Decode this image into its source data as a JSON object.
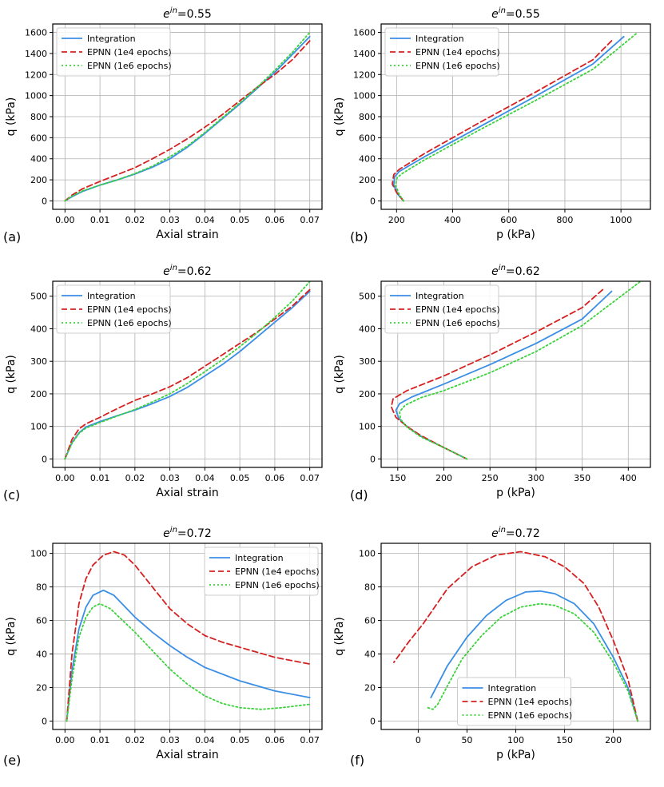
{
  "figure": {
    "colors": {
      "integration": "#3a8ee6",
      "epnn_1e4": "#d62020",
      "epnn_1e6": "#3ad23a"
    }
  },
  "chart_data": [
    {
      "id": "a",
      "panel_label": "(a)",
      "type": "line",
      "title_base": "e",
      "title_sup": "in",
      "title_value": "=0.55",
      "xlabel": "Axial strain",
      "ylabel": "q (kPa)",
      "xlim": [
        -0.0035,
        0.0735
      ],
      "ylim": [
        -80,
        1680
      ],
      "xticks": [
        0,
        0.01,
        0.02,
        0.03,
        0.04,
        0.05,
        0.06,
        0.07
      ],
      "xtick_labels": [
        "0.00",
        "0.01",
        "0.02",
        "0.03",
        "0.04",
        "0.05",
        "0.06",
        "0.07"
      ],
      "yticks": [
        0,
        200,
        400,
        600,
        800,
        1000,
        1200,
        1400,
        1600
      ],
      "ytick_labels": [
        "0",
        "200",
        "400",
        "600",
        "800",
        "1000",
        "1200",
        "1400",
        "1600"
      ],
      "legend": "top-left",
      "series": [
        {
          "name": "Integration",
          "style": "solid",
          "color_key": "integration",
          "x": [
            0,
            0.002,
            0.005,
            0.01,
            0.015,
            0.02,
            0.025,
            0.03,
            0.035,
            0.04,
            0.045,
            0.05,
            0.055,
            0.06,
            0.065,
            0.07
          ],
          "y": [
            0,
            40,
            90,
            150,
            200,
            255,
            320,
            400,
            510,
            640,
            780,
            920,
            1070,
            1220,
            1390,
            1560
          ]
        },
        {
          "name": "EPNN (1e4 epochs)",
          "style": "dashed",
          "color_key": "epnn_1e4",
          "x": [
            0,
            0.002,
            0.005,
            0.01,
            0.015,
            0.02,
            0.025,
            0.03,
            0.035,
            0.04,
            0.045,
            0.05,
            0.055,
            0.06,
            0.065,
            0.07
          ],
          "y": [
            0,
            55,
            115,
            185,
            250,
            315,
            400,
            490,
            590,
            700,
            820,
            950,
            1080,
            1200,
            1340,
            1520
          ]
        },
        {
          "name": "EPNN (1e6 epochs)",
          "style": "dotted",
          "color_key": "epnn_1e6",
          "x": [
            0,
            0.002,
            0.005,
            0.01,
            0.015,
            0.02,
            0.025,
            0.03,
            0.035,
            0.04,
            0.045,
            0.05,
            0.055,
            0.06,
            0.065,
            0.07
          ],
          "y": [
            0,
            45,
            95,
            150,
            200,
            260,
            330,
            420,
            520,
            650,
            790,
            930,
            1080,
            1240,
            1410,
            1600
          ]
        }
      ]
    },
    {
      "id": "b",
      "panel_label": "(b)",
      "type": "line",
      "title_base": "e",
      "title_sup": "in",
      "title_value": "=0.55",
      "xlabel": "p (kPa)",
      "ylabel": "q (kPa)",
      "xlim": [
        145,
        1105
      ],
      "ylim": [
        -80,
        1680
      ],
      "xticks": [
        200,
        400,
        600,
        800,
        1000
      ],
      "xtick_labels": [
        "200",
        "400",
        "600",
        "800",
        "1000"
      ],
      "yticks": [
        0,
        200,
        400,
        600,
        800,
        1000,
        1200,
        1400,
        1600
      ],
      "ytick_labels": [
        "0",
        "200",
        "400",
        "600",
        "800",
        "1000",
        "1200",
        "1400",
        "1600"
      ],
      "legend": "top-left",
      "series": [
        {
          "name": "Integration",
          "style": "solid",
          "color_key": "integration",
          "x": [
            225,
            205,
            190,
            193,
            210,
            300,
            500,
            700,
            900,
            1010
          ],
          "y": [
            0,
            60,
            150,
            230,
            280,
            420,
            710,
            1000,
            1300,
            1560
          ]
        },
        {
          "name": "EPNN (1e4 epochs)",
          "style": "dashed",
          "color_key": "epnn_1e4",
          "x": [
            225,
            200,
            185,
            190,
            210,
            300,
            500,
            700,
            900,
            970
          ],
          "y": [
            0,
            80,
            160,
            250,
            300,
            450,
            750,
            1040,
            1340,
            1530
          ]
        },
        {
          "name": "EPNN (1e6 epochs)",
          "style": "dotted",
          "color_key": "epnn_1e6",
          "x": [
            225,
            210,
            196,
            202,
            220,
            300,
            500,
            700,
            900,
            1060
          ],
          "y": [
            0,
            60,
            150,
            220,
            260,
            390,
            680,
            960,
            1250,
            1600
          ]
        }
      ]
    },
    {
      "id": "c",
      "panel_label": "(c)",
      "type": "line",
      "title_base": "e",
      "title_sup": "in",
      "title_value": "=0.62",
      "xlabel": "Axial strain",
      "ylabel": "q (kPa)",
      "xlim": [
        -0.0035,
        0.0735
      ],
      "ylim": [
        -26,
        546
      ],
      "xticks": [
        0,
        0.01,
        0.02,
        0.03,
        0.04,
        0.05,
        0.06,
        0.07
      ],
      "xtick_labels": [
        "0.00",
        "0.01",
        "0.02",
        "0.03",
        "0.04",
        "0.05",
        "0.06",
        "0.07"
      ],
      "yticks": [
        0,
        100,
        200,
        300,
        400,
        500
      ],
      "ytick_labels": [
        "0",
        "100",
        "200",
        "300",
        "400",
        "500"
      ],
      "legend": "top-left",
      "series": [
        {
          "name": "Integration",
          "style": "solid",
          "color_key": "integration",
          "x": [
            0,
            0.002,
            0.004,
            0.006,
            0.01,
            0.015,
            0.02,
            0.025,
            0.03,
            0.035,
            0.04,
            0.045,
            0.05,
            0.055,
            0.06,
            0.065,
            0.07
          ],
          "y": [
            0,
            50,
            80,
            98,
            115,
            133,
            150,
            170,
            192,
            220,
            255,
            290,
            330,
            375,
            420,
            465,
            515
          ]
        },
        {
          "name": "EPNN (1e4 epochs)",
          "style": "dashed",
          "color_key": "epnn_1e4",
          "x": [
            0,
            0.002,
            0.004,
            0.006,
            0.01,
            0.015,
            0.02,
            0.025,
            0.03,
            0.035,
            0.04,
            0.045,
            0.05,
            0.055,
            0.06,
            0.065,
            0.07
          ],
          "y": [
            0,
            60,
            92,
            108,
            128,
            155,
            180,
            200,
            222,
            250,
            285,
            320,
            355,
            390,
            430,
            470,
            520
          ]
        },
        {
          "name": "EPNN (1e6 epochs)",
          "style": "dotted",
          "color_key": "epnn_1e6",
          "x": [
            0,
            0.002,
            0.004,
            0.006,
            0.01,
            0.015,
            0.02,
            0.025,
            0.03,
            0.035,
            0.04,
            0.045,
            0.05,
            0.055,
            0.06,
            0.065,
            0.07
          ],
          "y": [
            0,
            48,
            78,
            95,
            112,
            132,
            152,
            175,
            200,
            232,
            268,
            305,
            345,
            388,
            435,
            485,
            545
          ]
        }
      ]
    },
    {
      "id": "d",
      "panel_label": "(d)",
      "type": "line",
      "title_base": "e",
      "title_sup": "in",
      "title_value": "=0.62",
      "xlabel": "p (kPa)",
      "ylabel": "q (kPa)",
      "xlim": [
        132,
        424
      ],
      "ylim": [
        -26,
        546
      ],
      "xticks": [
        150,
        200,
        250,
        300,
        350,
        400
      ],
      "xtick_labels": [
        "150",
        "200",
        "250",
        "300",
        "350",
        "400"
      ],
      "yticks": [
        0,
        100,
        200,
        300,
        400,
        500
      ],
      "ytick_labels": [
        "0",
        "100",
        "200",
        "300",
        "400",
        "500"
      ],
      "legend": "top-left",
      "series": [
        {
          "name": "Integration",
          "style": "solid",
          "color_key": "integration",
          "x": [
            225,
            200,
            175,
            160,
            151,
            148,
            152,
            165,
            200,
            250,
            300,
            350,
            382
          ],
          "y": [
            0,
            35,
            70,
            100,
            125,
            150,
            170,
            190,
            230,
            290,
            355,
            430,
            515
          ]
        },
        {
          "name": "EPNN (1e4 epochs)",
          "style": "dashed",
          "color_key": "epnn_1e4",
          "x": [
            225,
            200,
            175,
            160,
            148,
            143,
            145,
            160,
            200,
            250,
            300,
            350,
            373
          ],
          "y": [
            0,
            35,
            72,
            100,
            128,
            160,
            185,
            210,
            255,
            320,
            390,
            465,
            522
          ]
        },
        {
          "name": "EPNN (1e6 epochs)",
          "style": "dotted",
          "color_key": "epnn_1e6",
          "x": [
            225,
            200,
            175,
            160,
            153,
            152,
            158,
            175,
            200,
            250,
            300,
            350,
            413
          ],
          "y": [
            0,
            35,
            68,
            98,
            122,
            145,
            165,
            188,
            210,
            265,
            330,
            410,
            545
          ]
        }
      ]
    },
    {
      "id": "e",
      "panel_label": "(e)",
      "type": "line",
      "title_base": "e",
      "title_sup": "in",
      "title_value": "=0.72",
      "xlabel": "Axial strain",
      "ylabel": "q (kPa)",
      "xlim": [
        -0.0035,
        0.0735
      ],
      "ylim": [
        -5,
        106
      ],
      "xticks": [
        0,
        0.01,
        0.02,
        0.03,
        0.04,
        0.05,
        0.06,
        0.07
      ],
      "xtick_labels": [
        "0.00",
        "0.01",
        "0.02",
        "0.03",
        "0.04",
        "0.05",
        "0.06",
        "0.07"
      ],
      "yticks": [
        0,
        20,
        40,
        60,
        80,
        100
      ],
      "ytick_labels": [
        "0",
        "20",
        "40",
        "60",
        "80",
        "100"
      ],
      "legend": "top-right",
      "series": [
        {
          "name": "Integration",
          "style": "solid",
          "color_key": "integration",
          "x": [
            0.0005,
            0.002,
            0.004,
            0.006,
            0.008,
            0.011,
            0.014,
            0.02,
            0.025,
            0.03,
            0.035,
            0.04,
            0.05,
            0.06,
            0.07
          ],
          "y": [
            0,
            30,
            55,
            68,
            75,
            78,
            75,
            62,
            53,
            45,
            38,
            32,
            24,
            18,
            14
          ]
        },
        {
          "name": "EPNN (1e4 epochs)",
          "style": "dashed",
          "color_key": "epnn_1e4",
          "x": [
            0.0005,
            0.002,
            0.004,
            0.006,
            0.008,
            0.011,
            0.014,
            0.017,
            0.02,
            0.025,
            0.03,
            0.035,
            0.04,
            0.045,
            0.05,
            0.06,
            0.07
          ],
          "y": [
            0,
            40,
            70,
            85,
            93,
            99,
            101,
            99,
            93,
            80,
            67,
            58,
            51,
            47,
            44,
            38,
            34
          ]
        },
        {
          "name": "EPNN (1e6 epochs)",
          "style": "dotted",
          "color_key": "epnn_1e6",
          "x": [
            0.0005,
            0.002,
            0.004,
            0.006,
            0.008,
            0.01,
            0.013,
            0.02,
            0.025,
            0.03,
            0.035,
            0.04,
            0.045,
            0.05,
            0.056,
            0.062,
            0.07
          ],
          "y": [
            0,
            25,
            50,
            62,
            68,
            70,
            67,
            53,
            42,
            31,
            22,
            15,
            10.5,
            8,
            7,
            8,
            10
          ]
        }
      ]
    },
    {
      "id": "f",
      "panel_label": "(f)",
      "type": "line",
      "title_base": "e",
      "title_sup": "in",
      "title_value": "=0.72",
      "xlabel": "p (kPa)",
      "ylabel": "q (kPa)",
      "xlim": [
        -38,
        238
      ],
      "ylim": [
        -5,
        106
      ],
      "xticks": [
        0,
        50,
        100,
        150,
        200
      ],
      "xtick_labels": [
        "0",
        "50",
        "100",
        "150",
        "200"
      ],
      "yticks": [
        0,
        20,
        40,
        60,
        80,
        100
      ],
      "ytick_labels": [
        "0",
        "20",
        "40",
        "60",
        "80",
        "100"
      ],
      "legend": "bottom-center",
      "series": [
        {
          "name": "Integration",
          "style": "solid",
          "color_key": "integration",
          "x": [
            225,
            215,
            200,
            180,
            160,
            140,
            125,
            110,
            90,
            70,
            50,
            30,
            13
          ],
          "y": [
            0,
            20,
            38,
            58,
            70,
            76,
            77.5,
            77,
            72,
            63,
            50,
            33,
            14
          ]
        },
        {
          "name": "EPNN (1e4 epochs)",
          "style": "dashed",
          "color_key": "epnn_1e4",
          "x": [
            225,
            215,
            200,
            185,
            170,
            150,
            130,
            105,
            80,
            55,
            30,
            5,
            -10,
            -25
          ],
          "y": [
            0,
            25,
            48,
            68,
            82,
            92,
            98,
            101,
            99,
            92,
            79,
            58,
            47,
            35
          ]
        },
        {
          "name": "EPNN (1e6 epochs)",
          "style": "dotted",
          "color_key": "epnn_1e6",
          "x": [
            225,
            215,
            200,
            180,
            160,
            140,
            125,
            105,
            85,
            65,
            45,
            30,
            20,
            15,
            10
          ],
          "y": [
            0,
            18,
            35,
            53,
            64,
            69,
            70,
            68,
            62,
            51,
            37,
            21,
            10,
            7,
            8
          ]
        }
      ]
    }
  ]
}
